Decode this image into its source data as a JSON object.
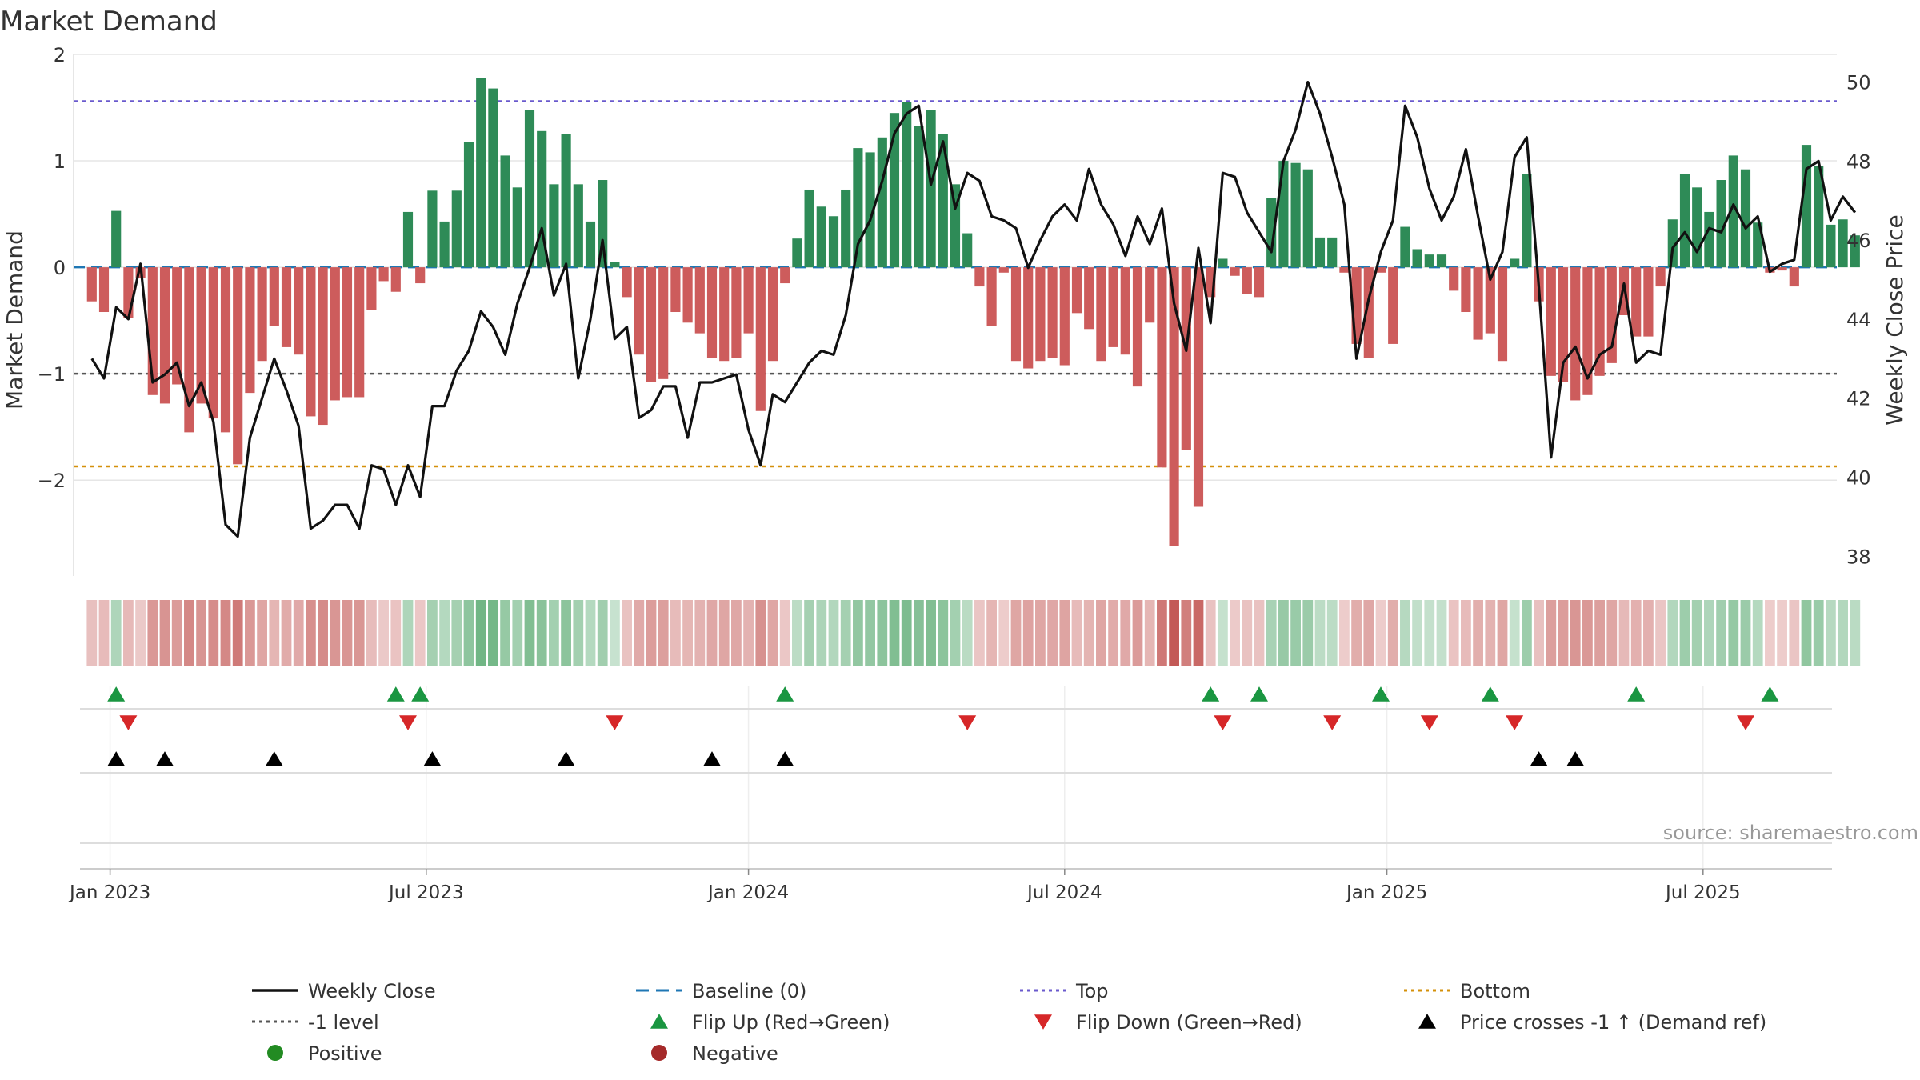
{
  "chart_data": {
    "type": "bar+line",
    "title": "Market Demand",
    "ylabel": "Market Demand",
    "y2label": "Weekly Close Price",
    "ylim": [
      -2.9,
      2.0
    ],
    "y2lim": [
      37.5,
      50.7
    ],
    "y_ticks": [
      2,
      1,
      0,
      -1,
      -2
    ],
    "y_tick_labels": [
      "2",
      "1",
      "0",
      "−1",
      "−2"
    ],
    "y2_ticks": [
      50,
      48,
      46,
      44,
      42,
      40,
      38
    ],
    "y2_tick_labels": [
      "50",
      "48",
      "46",
      "44",
      "42",
      "40",
      "38"
    ],
    "x_range_weeks": [
      -1.5,
      143.5
    ],
    "x_ticks": [
      {
        "label": "Jan 2023",
        "week": 1.5
      },
      {
        "label": "Jul 2023",
        "week": 27.5
      },
      {
        "label": "Jan 2024",
        "week": 54
      },
      {
        "label": "Jul 2024",
        "week": 80
      },
      {
        "label": "Jan 2025",
        "week": 106.5
      },
      {
        "label": "Jul 2025",
        "week": 132.5
      }
    ],
    "reference_lines": {
      "top": 1.56,
      "baseline": 0,
      "minus_one": -1,
      "bottom": -1.87
    },
    "demand": [
      -0.32,
      -0.42,
      0.53,
      -0.48,
      -0.1,
      -1.2,
      -1.28,
      -1.1,
      -1.55,
      -1.28,
      -1.42,
      -1.55,
      -1.85,
      -1.18,
      -0.88,
      -0.55,
      -0.75,
      -0.82,
      -1.4,
      -1.48,
      -1.25,
      -1.22,
      -1.22,
      -0.4,
      -0.13,
      -0.23,
      0.52,
      -0.15,
      0.72,
      0.43,
      0.72,
      1.18,
      1.78,
      1.68,
      1.05,
      0.75,
      1.48,
      1.28,
      0.78,
      1.25,
      0.78,
      0.43,
      0.82,
      0.05,
      -0.28,
      -0.82,
      -1.08,
      -1.05,
      -0.42,
      -0.52,
      -0.62,
      -0.85,
      -0.88,
      -0.85,
      -0.62,
      -1.35,
      -0.88,
      -0.15,
      0.27,
      0.73,
      0.57,
      0.48,
      0.73,
      1.12,
      1.08,
      1.22,
      1.45,
      1.55,
      1.33,
      1.48,
      1.25,
      0.78,
      0.32,
      -0.18,
      -0.55,
      -0.05,
      -0.88,
      -0.95,
      -0.88,
      -0.85,
      -0.92,
      -0.43,
      -0.58,
      -0.88,
      -0.75,
      -0.82,
      -1.12,
      -0.52,
      -1.88,
      -2.62,
      -1.72,
      -2.25,
      -0.28,
      0.08,
      -0.08,
      -0.25,
      -0.28,
      0.65,
      1.0,
      0.98,
      0.92,
      0.28,
      0.28,
      -0.05,
      -0.72,
      -0.85,
      -0.05,
      -0.72,
      0.38,
      0.17,
      0.12,
      0.12,
      -0.22,
      -0.42,
      -0.68,
      -0.62,
      -0.88,
      0.08,
      0.88,
      -0.32,
      -1.02,
      -1.08,
      -1.25,
      -1.2,
      -1.02,
      -0.9,
      -0.45,
      -0.65,
      -0.65,
      -0.18,
      0.45,
      0.88,
      0.75,
      0.52,
      0.82,
      1.05,
      0.92,
      0.42,
      -0.05,
      -0.03,
      -0.18,
      1.15,
      0.95,
      0.4,
      0.45,
      0.3
    ],
    "weekly_close": [
      43.0,
      42.5,
      44.3,
      44.0,
      45.4,
      42.4,
      42.6,
      42.9,
      41.8,
      42.4,
      41.4,
      38.8,
      38.5,
      41.0,
      42.0,
      43.0,
      42.2,
      41.3,
      38.7,
      38.9,
      39.3,
      39.3,
      38.7,
      40.3,
      40.2,
      39.3,
      40.3,
      39.5,
      41.8,
      41.8,
      42.7,
      43.2,
      44.2,
      43.8,
      43.1,
      44.4,
      45.3,
      46.3,
      44.6,
      45.4,
      42.5,
      44.0,
      46.0,
      43.5,
      43.8,
      41.5,
      41.7,
      42.3,
      42.3,
      41.0,
      42.4,
      42.4,
      42.5,
      42.6,
      41.2,
      40.3,
      42.1,
      41.9,
      42.4,
      42.9,
      43.2,
      43.1,
      44.1,
      45.9,
      46.5,
      47.5,
      48.7,
      49.2,
      49.4,
      47.4,
      48.5,
      46.8,
      47.7,
      47.5,
      46.6,
      46.5,
      46.3,
      45.3,
      46.0,
      46.6,
      46.9,
      46.5,
      47.8,
      46.9,
      46.4,
      45.6,
      46.6,
      45.9,
      46.8,
      44.4,
      43.2,
      45.8,
      43.9,
      47.7,
      47.6,
      46.7,
      46.2,
      45.7,
      48.0,
      48.8,
      50.0,
      49.2,
      48.1,
      46.9,
      43.0,
      44.5,
      45.7,
      46.5,
      49.4,
      48.6,
      47.3,
      46.5,
      47.1,
      48.3,
      46.6,
      45.0,
      45.7,
      48.1,
      48.6,
      44.8,
      40.5,
      42.9,
      43.3,
      42.5,
      43.1,
      43.3,
      44.9,
      42.9,
      43.2,
      43.1,
      45.8,
      46.2,
      45.7,
      46.3,
      46.2,
      46.9,
      46.3,
      46.6,
      45.2,
      45.4,
      45.5,
      47.8,
      48.0,
      46.5,
      47.1,
      46.7
    ],
    "flip_up_weeks": [
      2,
      25,
      27,
      57,
      92,
      96,
      106,
      115,
      127,
      138
    ],
    "flip_down_weeks": [
      3,
      26,
      43,
      72,
      93,
      102,
      110,
      117,
      136
    ],
    "price_cross_weeks": [
      2,
      6,
      15,
      28,
      39,
      51,
      57,
      119,
      122
    ],
    "legend": [
      {
        "label": "Weekly Close",
        "symbol": "line",
        "color": "#111111"
      },
      {
        "label": "Baseline (0)",
        "symbol": "dashed",
        "color": "#1f77b4"
      },
      {
        "label": "Top",
        "symbol": "dotted",
        "color": "#6a5acd"
      },
      {
        "label": "Bottom",
        "symbol": "dotted",
        "color": "#d4900a"
      },
      {
        "label": "-1 level",
        "symbol": "dotted",
        "color": "#555555"
      },
      {
        "label": "Flip Up (Red→Green)",
        "symbol": "triangle-up",
        "color": "#1a9641"
      },
      {
        "label": "Flip Down (Green→Red)",
        "symbol": "triangle-down",
        "color": "#d62728"
      },
      {
        "label": "Price crosses -1 ↑ (Demand ref)",
        "symbol": "triangle-up",
        "color": "#000000"
      },
      {
        "label": "Positive",
        "symbol": "circle",
        "color": "#228b22"
      },
      {
        "label": "Negative",
        "symbol": "circle",
        "color": "#a52a2a"
      }
    ],
    "source": "source: sharemaestro.com"
  },
  "colors": {
    "positive_bar": "#2e8b57",
    "negative_bar": "#cd5c5c",
    "strip_positive": "#3f9c5a",
    "strip_negative": "#c0504d",
    "close_line": "#111111",
    "grid": "#e6e6e6"
  }
}
